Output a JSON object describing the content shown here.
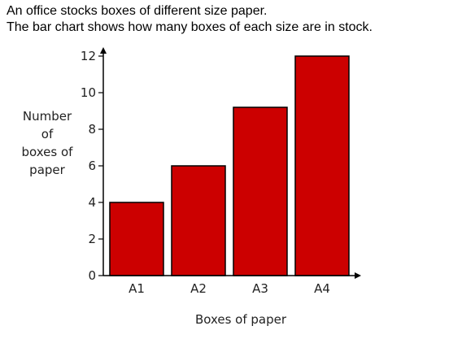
{
  "intro": {
    "line1": "An office stocks boxes of different size paper.",
    "line2": "The bar chart shows how many boxes of each size are in stock."
  },
  "chart_data": {
    "type": "bar",
    "categories": [
      "A1",
      "A2",
      "A3",
      "A4"
    ],
    "values": [
      4,
      6,
      9.2,
      12
    ],
    "xlabel": "Boxes of paper",
    "ylabel_lines": [
      "Number",
      "of",
      "boxes of",
      "paper"
    ],
    "ylim": [
      0,
      12
    ],
    "yticks": [
      0,
      2,
      4,
      6,
      8,
      10,
      12
    ],
    "bar_color": "#cc0000",
    "bar_edge_color": "#000000",
    "grid": false
  }
}
